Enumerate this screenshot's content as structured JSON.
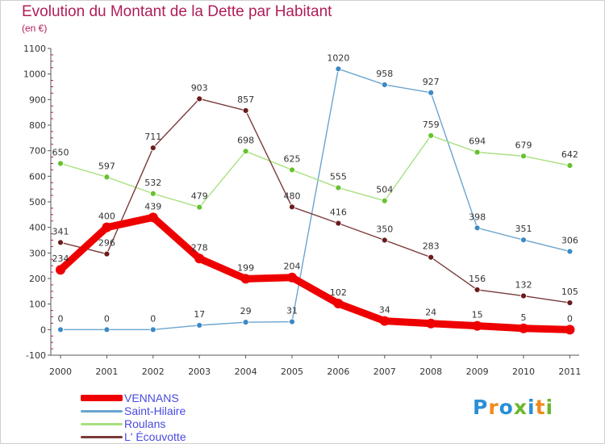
{
  "header": {
    "title": "Evolution du Montant de la Dette par Habitant",
    "subtitle": "(en €)"
  },
  "logo": {
    "text": "Proxiti",
    "colors": [
      "#2a8fd6",
      "#f08a1c",
      "#2a8fd6",
      "#6bb82d",
      "#2a8fd6",
      "#f08a1c",
      "#6bb82d"
    ]
  },
  "chart_data": {
    "type": "line",
    "title": "Evolution du Montant de la Dette par Habitant",
    "subtitle": "(en €)",
    "xlabel": "",
    "ylabel": "",
    "x": [
      "2000",
      "2001",
      "2002",
      "2003",
      "2004",
      "2005",
      "2006",
      "2007",
      "2008",
      "2009",
      "2010",
      "2011"
    ],
    "ylim": [
      -100,
      1100
    ],
    "yticks": [
      -100,
      0,
      100,
      200,
      300,
      400,
      500,
      600,
      700,
      800,
      900,
      1000,
      1100
    ],
    "grid": false,
    "legend_position": "bottom-left",
    "series": [
      {
        "name": "VENNANS",
        "color": "#ee0000",
        "emphasis": true,
        "values": [
          234,
          400,
          439,
          278,
          199,
          204,
          102,
          34,
          24,
          15,
          5,
          0
        ]
      },
      {
        "name": "Saint-Hilaire",
        "color": "#6aa5cf",
        "marker": "#3d89c4",
        "values": [
          0,
          0,
          0,
          17,
          29,
          31,
          1020,
          958,
          927,
          398,
          351,
          306
        ]
      },
      {
        "name": "Roulans",
        "color": "#a8e07f",
        "marker": "#66c22e",
        "values": [
          650,
          597,
          532,
          479,
          698,
          625,
          555,
          504,
          759,
          694,
          679,
          642
        ]
      },
      {
        "name": "L' Écouvotte",
        "color": "#7a3a3a",
        "marker": "#6b1c1c",
        "values": [
          341,
          296,
          711,
          903,
          857,
          480,
          416,
          350,
          283,
          156,
          132,
          105
        ]
      }
    ]
  }
}
